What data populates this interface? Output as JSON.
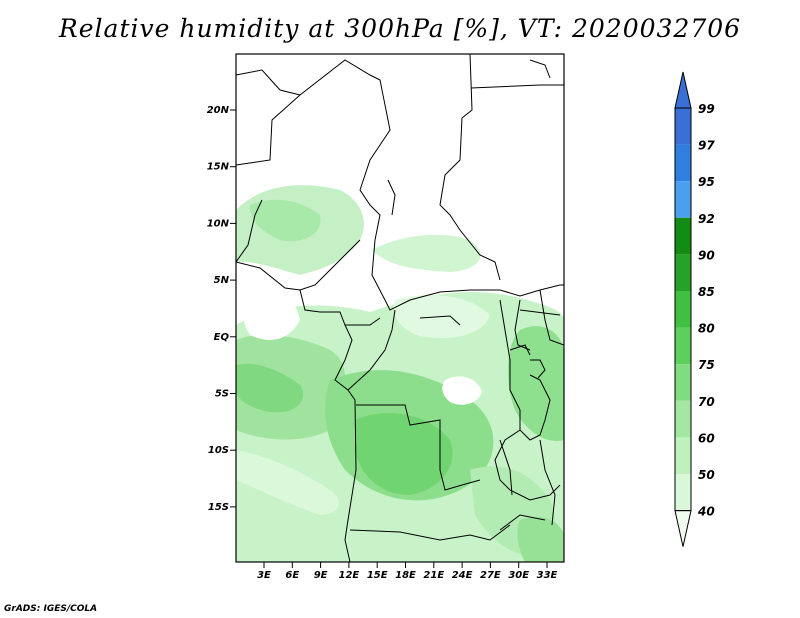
{
  "title": "Relative humidity at 300hPa [%], VT: 2020032706",
  "credit": "GrADS: IGES/COLA",
  "map": {
    "lat_labels": [
      "20N",
      "15N",
      "10N",
      "5N",
      "EQ",
      "5S",
      "10S",
      "15S"
    ],
    "lon_labels": [
      "3E",
      "6E",
      "9E",
      "12E",
      "15E",
      "18E",
      "21E",
      "24E",
      "27E",
      "30E",
      "33E"
    ]
  },
  "colorbar": {
    "labels": [
      "99",
      "97",
      "95",
      "92",
      "90",
      "85",
      "80",
      "75",
      "70",
      "60",
      "50",
      "40"
    ],
    "colors": [
      "#3a6fd6",
      "#2f7ee0",
      "#4aa0ee",
      "#138c13",
      "#27a127",
      "#40bf40",
      "#5ccf5c",
      "#80dc80",
      "#a2e8a2",
      "#bff1bf",
      "#d9f8d9",
      "#effdef"
    ]
  },
  "colors": {
    "land_dry": "#ffffff",
    "border": "#000000"
  }
}
